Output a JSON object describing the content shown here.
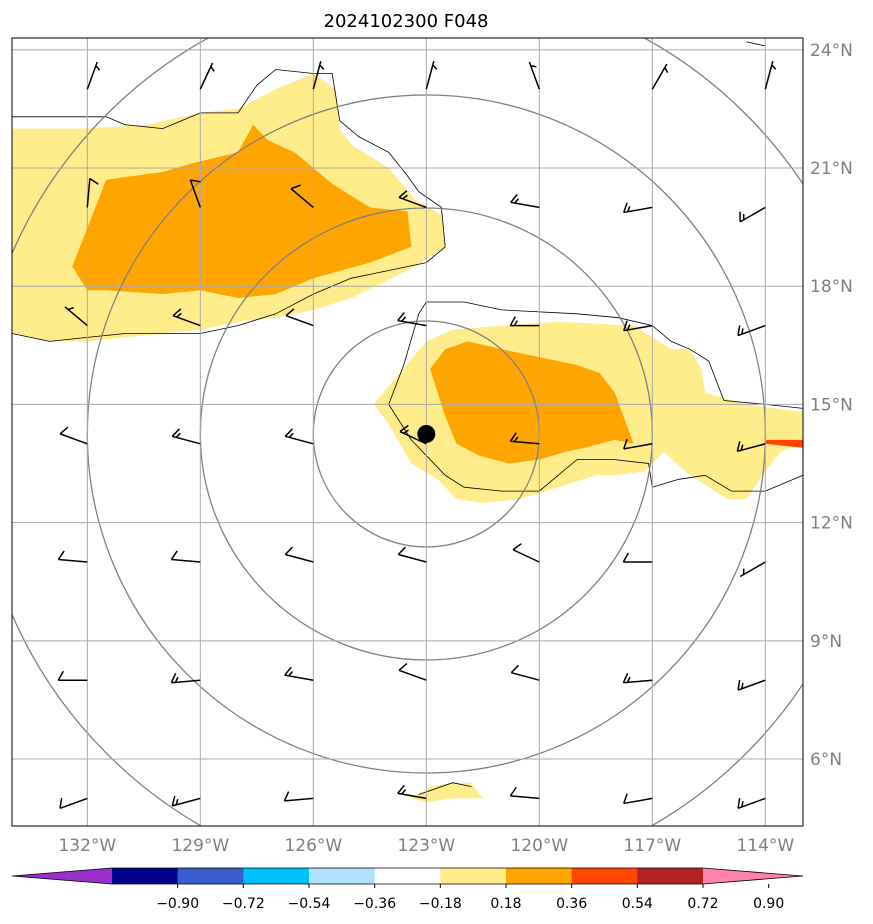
{
  "title": "2024102300 F048",
  "lon_range": [
    -134,
    -113
  ],
  "lat_range": [
    4.3,
    24.3
  ],
  "lon_ticks": [
    {
      "value": -132,
      "label": "132°W"
    },
    {
      "value": -129,
      "label": "129°W"
    },
    {
      "value": -126,
      "label": "126°W"
    },
    {
      "value": -123,
      "label": "123°W"
    },
    {
      "value": -120,
      "label": "120°W"
    },
    {
      "value": -117,
      "label": "117°W"
    },
    {
      "value": -114,
      "label": "114°W"
    }
  ],
  "lat_ticks": [
    {
      "value": 24,
      "label": "24°N"
    },
    {
      "value": 21,
      "label": "21°N"
    },
    {
      "value": 18,
      "label": "18°N"
    },
    {
      "value": 15,
      "label": "15°N"
    },
    {
      "value": 12,
      "label": "12°N"
    },
    {
      "value": 9,
      "label": "9°N"
    },
    {
      "value": 6,
      "label": "6°N"
    }
  ],
  "storm_center": {
    "lon": -123,
    "lat": 14.25
  },
  "range_ring_radii_deg": [
    3,
    6,
    9,
    12
  ],
  "colorbar": {
    "colors": [
      "#9932cc",
      "#00008b",
      "#3a5fcd",
      "#00bfff",
      "#b0e2ff",
      "#ffffff",
      "#ffec8b",
      "#ffa500",
      "#ff4500",
      "#b22222",
      "#ff82ab"
    ],
    "tick_labels": [
      "−0.90",
      "−0.72",
      "−0.54",
      "−0.36",
      "−0.18",
      "0.18",
      "0.36",
      "0.54",
      "0.72",
      "0.90"
    ]
  },
  "fill_colors": {
    "light": "#ffec8b",
    "dark": "#ffa500",
    "red": "#ff4500"
  },
  "shaded_regions": [
    {
      "level": "light",
      "points": [
        [
          -134,
          22
        ],
        [
          -132,
          22
        ],
        [
          -130.4,
          22.1
        ],
        [
          -129,
          22.4
        ],
        [
          -128,
          22.5
        ],
        [
          -127,
          23
        ],
        [
          -126,
          23.4
        ],
        [
          -125.4,
          23
        ],
        [
          -125.3,
          22
        ],
        [
          -125,
          21.6
        ],
        [
          -124,
          21
        ],
        [
          -123.3,
          20.2
        ],
        [
          -122.6,
          19.8
        ],
        [
          -122.5,
          19
        ],
        [
          -123.3,
          18.5
        ],
        [
          -125,
          17.7
        ],
        [
          -126,
          17.4
        ],
        [
          -127,
          17.2
        ],
        [
          -128,
          17.1
        ],
        [
          -129,
          16.9
        ],
        [
          -130,
          16.8
        ],
        [
          -131,
          16.7
        ],
        [
          -132,
          16.6
        ],
        [
          -133,
          16.6
        ],
        [
          -134,
          16.8
        ]
      ]
    },
    {
      "level": "dark",
      "points": [
        [
          -132.4,
          18.5
        ],
        [
          -131.5,
          20.7
        ],
        [
          -130,
          20.9
        ],
        [
          -129.3,
          21.1
        ],
        [
          -128,
          21.4
        ],
        [
          -127.6,
          22.1
        ],
        [
          -127.2,
          21.7
        ],
        [
          -126.5,
          21.4
        ],
        [
          -125.5,
          20.6
        ],
        [
          -124.5,
          20
        ],
        [
          -123.5,
          19.9
        ],
        [
          -123.4,
          19
        ],
        [
          -124.5,
          18.6
        ],
        [
          -126,
          18.2
        ],
        [
          -127,
          17.8
        ],
        [
          -128,
          17.7
        ],
        [
          -129,
          17.9
        ],
        [
          -130,
          17.8
        ],
        [
          -131.5,
          17.9
        ],
        [
          -132,
          17.9
        ]
      ]
    },
    {
      "level": "light",
      "points": [
        [
          -124.4,
          15
        ],
        [
          -123.7,
          15.8
        ],
        [
          -123,
          16.6
        ],
        [
          -122.3,
          16.9
        ],
        [
          -121,
          17
        ],
        [
          -119.5,
          17.1
        ],
        [
          -117.5,
          17
        ],
        [
          -116.5,
          16.4
        ],
        [
          -116,
          16.4
        ],
        [
          -115.7,
          15.9
        ],
        [
          -115.6,
          15.3
        ],
        [
          -114.5,
          15
        ],
        [
          -113,
          14.8
        ],
        [
          -113,
          14
        ],
        [
          -113.6,
          13.8
        ],
        [
          -114,
          13.3
        ],
        [
          -114.5,
          12.6
        ],
        [
          -115,
          12.6
        ],
        [
          -116,
          13.2
        ],
        [
          -116.7,
          13.8
        ],
        [
          -117.2,
          13.3
        ],
        [
          -118,
          13.2
        ],
        [
          -118.5,
          13.2
        ],
        [
          -119.5,
          12.9
        ],
        [
          -120.5,
          12.6
        ],
        [
          -121.5,
          12.5
        ],
        [
          -122.2,
          12.6
        ],
        [
          -122.7,
          13.1
        ],
        [
          -123.4,
          13.5
        ],
        [
          -124,
          14.5
        ]
      ]
    },
    {
      "level": "dark",
      "points": [
        [
          -122.9,
          15.9
        ],
        [
          -122.5,
          16.4
        ],
        [
          -121.9,
          16.6
        ],
        [
          -121,
          16.4
        ],
        [
          -120,
          16.2
        ],
        [
          -119,
          16
        ],
        [
          -118.4,
          15.8
        ],
        [
          -118,
          15.3
        ],
        [
          -117.5,
          14
        ],
        [
          -118,
          14.1
        ],
        [
          -118.8,
          13.9
        ],
        [
          -119.3,
          13.8
        ],
        [
          -120,
          13.6
        ],
        [
          -120.8,
          13.5
        ],
        [
          -121.6,
          13.7
        ],
        [
          -122.2,
          14
        ],
        [
          -122.5,
          14.7
        ]
      ]
    },
    {
      "level": "red",
      "points": [
        [
          -114,
          14.1
        ],
        [
          -113,
          14.1
        ],
        [
          -113,
          13.9
        ],
        [
          -114,
          14
        ]
      ]
    },
    {
      "level": "light",
      "points": [
        [
          -123.4,
          5
        ],
        [
          -122.9,
          5.3
        ],
        [
          -122.3,
          5.4
        ],
        [
          -121.8,
          5.4
        ],
        [
          -121.5,
          5
        ],
        [
          -122.3,
          5
        ],
        [
          -123,
          4.9
        ]
      ]
    }
  ],
  "outline_lines": [
    [
      [
        -134,
        22.3
      ],
      [
        -133,
        22.3
      ],
      [
        -131.5,
        22.3
      ],
      [
        -131,
        22.1
      ],
      [
        -130,
        22
      ],
      [
        -129,
        22.4
      ],
      [
        -128,
        22.4
      ],
      [
        -127.5,
        23.1
      ],
      [
        -127,
        23.5
      ],
      [
        -126,
        23.4
      ],
      [
        -125.5,
        23.4
      ],
      [
        -125.3,
        22.2
      ],
      [
        -124.8,
        21.8
      ],
      [
        -124,
        21.4
      ],
      [
        -123.5,
        20.8
      ],
      [
        -123.2,
        20.4
      ],
      [
        -122.6,
        20
      ],
      [
        -122.5,
        19
      ],
      [
        -123,
        18.6
      ],
      [
        -124,
        18.4
      ],
      [
        -125,
        18.2
      ],
      [
        -126,
        17.8
      ],
      [
        -127,
        17.3
      ],
      [
        -128,
        17
      ],
      [
        -129,
        16.8
      ],
      [
        -130,
        16.8
      ],
      [
        -131,
        16.8
      ],
      [
        -132,
        16.7
      ],
      [
        -133,
        16.6
      ],
      [
        -134,
        16.8
      ]
    ],
    [
      [
        -124,
        15
      ],
      [
        -123.6,
        16
      ],
      [
        -123.2,
        17.3
      ],
      [
        -123,
        17.6
      ],
      [
        -122,
        17.6
      ],
      [
        -121,
        17.4
      ],
      [
        -119,
        17.3
      ],
      [
        -117.9,
        17.2
      ],
      [
        -117,
        17
      ],
      [
        -116.5,
        16.6
      ],
      [
        -116,
        16.4
      ],
      [
        -115.5,
        16.1
      ],
      [
        -115.1,
        15.1
      ],
      [
        -114,
        15
      ],
      [
        -113,
        14.9
      ]
    ],
    [
      [
        -124,
        15
      ],
      [
        -123.4,
        14.1
      ],
      [
        -122.5,
        13.2
      ],
      [
        -122,
        12.9
      ],
      [
        -121,
        12.8
      ],
      [
        -120,
        12.8
      ],
      [
        -119.5,
        13.2
      ],
      [
        -119,
        13.6
      ],
      [
        -118,
        13.6
      ],
      [
        -117.1,
        13.5
      ],
      [
        -117,
        12.9
      ],
      [
        -116.3,
        13.1
      ],
      [
        -115.6,
        13.2
      ],
      [
        -114.9,
        12.8
      ],
      [
        -114,
        12.8
      ],
      [
        -113,
        13.2
      ]
    ],
    [
      [
        -123.2,
        5.1
      ],
      [
        -122.3,
        5.4
      ],
      [
        -121.8,
        5.3
      ]
    ],
    [
      [
        -114.5,
        24.2
      ],
      [
        -114,
        24.1
      ]
    ]
  ],
  "wind_barbs": [
    {
      "lon": -132,
      "lat": 23,
      "dir": 20,
      "spd": 5
    },
    {
      "lon": -129,
      "lat": 23,
      "dir": 25,
      "spd": 5
    },
    {
      "lon": -126,
      "lat": 23,
      "dir": 15,
      "spd": 5
    },
    {
      "lon": -123,
      "lat": 23,
      "dir": 15,
      "spd": 5
    },
    {
      "lon": -120,
      "lat": 23,
      "dir": 340,
      "spd": 5
    },
    {
      "lon": -117,
      "lat": 23,
      "dir": 30,
      "spd": 5
    },
    {
      "lon": -114,
      "lat": 23,
      "dir": 15,
      "spd": 5
    },
    {
      "lon": -132,
      "lat": 20,
      "dir": 5,
      "spd": 10
    },
    {
      "lon": -129,
      "lat": 20,
      "dir": 340,
      "spd": 10
    },
    {
      "lon": -126,
      "lat": 20,
      "dir": 310,
      "spd": 10
    },
    {
      "lon": -123,
      "lat": 20,
      "dir": 290,
      "spd": 15
    },
    {
      "lon": -120,
      "lat": 20,
      "dir": 280,
      "spd": 15
    },
    {
      "lon": -117,
      "lat": 20,
      "dir": 260,
      "spd": 15
    },
    {
      "lon": -114,
      "lat": 20,
      "dir": 240,
      "spd": 15
    },
    {
      "lon": -132,
      "lat": 17,
      "dir": 310,
      "spd": 5
    },
    {
      "lon": -129,
      "lat": 17,
      "dir": 290,
      "spd": 15
    },
    {
      "lon": -126,
      "lat": 17,
      "dir": 290,
      "spd": 10
    },
    {
      "lon": -123,
      "lat": 17,
      "dir": 280,
      "spd": 15
    },
    {
      "lon": -120,
      "lat": 17,
      "dir": 270,
      "spd": 15
    },
    {
      "lon": -117,
      "lat": 17,
      "dir": 260,
      "spd": 15
    },
    {
      "lon": -114,
      "lat": 17,
      "dir": 250,
      "spd": 15
    },
    {
      "lon": -132,
      "lat": 14,
      "dir": 290,
      "spd": 10
    },
    {
      "lon": -129,
      "lat": 14,
      "dir": 285,
      "spd": 15
    },
    {
      "lon": -126,
      "lat": 14,
      "dir": 285,
      "spd": 15
    },
    {
      "lon": -123,
      "lat": 14,
      "dir": 295,
      "spd": 15
    },
    {
      "lon": -120,
      "lat": 14,
      "dir": 275,
      "spd": 15
    },
    {
      "lon": -117,
      "lat": 14,
      "dir": 260,
      "spd": 10
    },
    {
      "lon": -114,
      "lat": 14,
      "dir": 255,
      "spd": 15
    },
    {
      "lon": -132,
      "lat": 11,
      "dir": 275,
      "spd": 10
    },
    {
      "lon": -129,
      "lat": 11,
      "dir": 275,
      "spd": 10
    },
    {
      "lon": -126,
      "lat": 11,
      "dir": 285,
      "spd": 10
    },
    {
      "lon": -123,
      "lat": 11,
      "dir": 285,
      "spd": 10
    },
    {
      "lon": -120,
      "lat": 11,
      "dir": 295,
      "spd": 10
    },
    {
      "lon": -117,
      "lat": 11,
      "dir": 270,
      "spd": 10
    },
    {
      "lon": -114,
      "lat": 11,
      "dir": 240,
      "spd": 5
    },
    {
      "lon": -132,
      "lat": 8,
      "dir": 270,
      "spd": 10
    },
    {
      "lon": -129,
      "lat": 8,
      "dir": 265,
      "spd": 15
    },
    {
      "lon": -126,
      "lat": 8,
      "dir": 280,
      "spd": 15
    },
    {
      "lon": -123,
      "lat": 8,
      "dir": 290,
      "spd": 10
    },
    {
      "lon": -120,
      "lat": 8,
      "dir": 285,
      "spd": 10
    },
    {
      "lon": -117,
      "lat": 8,
      "dir": 265,
      "spd": 15
    },
    {
      "lon": -114,
      "lat": 8,
      "dir": 250,
      "spd": 15
    },
    {
      "lon": -132,
      "lat": 5,
      "dir": 250,
      "spd": 10
    },
    {
      "lon": -129,
      "lat": 5,
      "dir": 255,
      "spd": 15
    },
    {
      "lon": -126,
      "lat": 5,
      "dir": 265,
      "spd": 10
    },
    {
      "lon": -123,
      "lat": 5,
      "dir": 280,
      "spd": 15
    },
    {
      "lon": -120,
      "lat": 5,
      "dir": 275,
      "spd": 10
    },
    {
      "lon": -117,
      "lat": 5,
      "dir": 260,
      "spd": 10
    },
    {
      "lon": -114,
      "lat": 5,
      "dir": 250,
      "spd": 15
    }
  ]
}
